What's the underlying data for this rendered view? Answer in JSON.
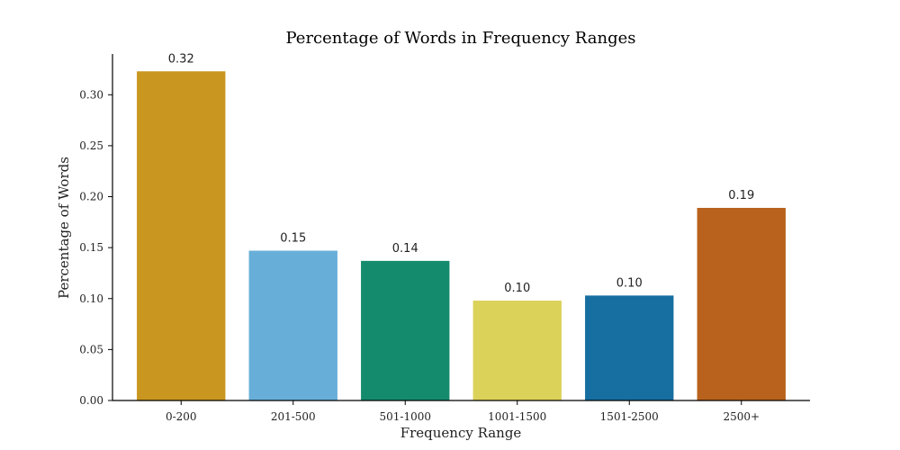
{
  "chart_data": {
    "type": "bar",
    "title": "Percentage of Words in Frequency Ranges",
    "xlabel": "Frequency Range",
    "ylabel": "Percentage of Words",
    "categories": [
      "0-200",
      "201-500",
      "501-1000",
      "1001-1500",
      "1501-2500",
      "2500+"
    ],
    "values": [
      0.323,
      0.147,
      0.137,
      0.098,
      0.103,
      0.189
    ],
    "data_labels": [
      "0.32",
      "0.15",
      "0.14",
      "0.10",
      "0.10",
      "0.19"
    ],
    "colors": [
      "#C9961F",
      "#67AFD8",
      "#158B6D",
      "#DBD25A",
      "#176EA0",
      "#B8621D"
    ],
    "ylim": [
      0,
      0.34
    ],
    "yticks": [
      0.0,
      0.05,
      0.1,
      0.15,
      0.2,
      0.25,
      0.3
    ],
    "ytick_labels": [
      "0.00",
      "0.05",
      "0.10",
      "0.15",
      "0.20",
      "0.25",
      "0.30"
    ],
    "grid": false,
    "legend": "none"
  }
}
